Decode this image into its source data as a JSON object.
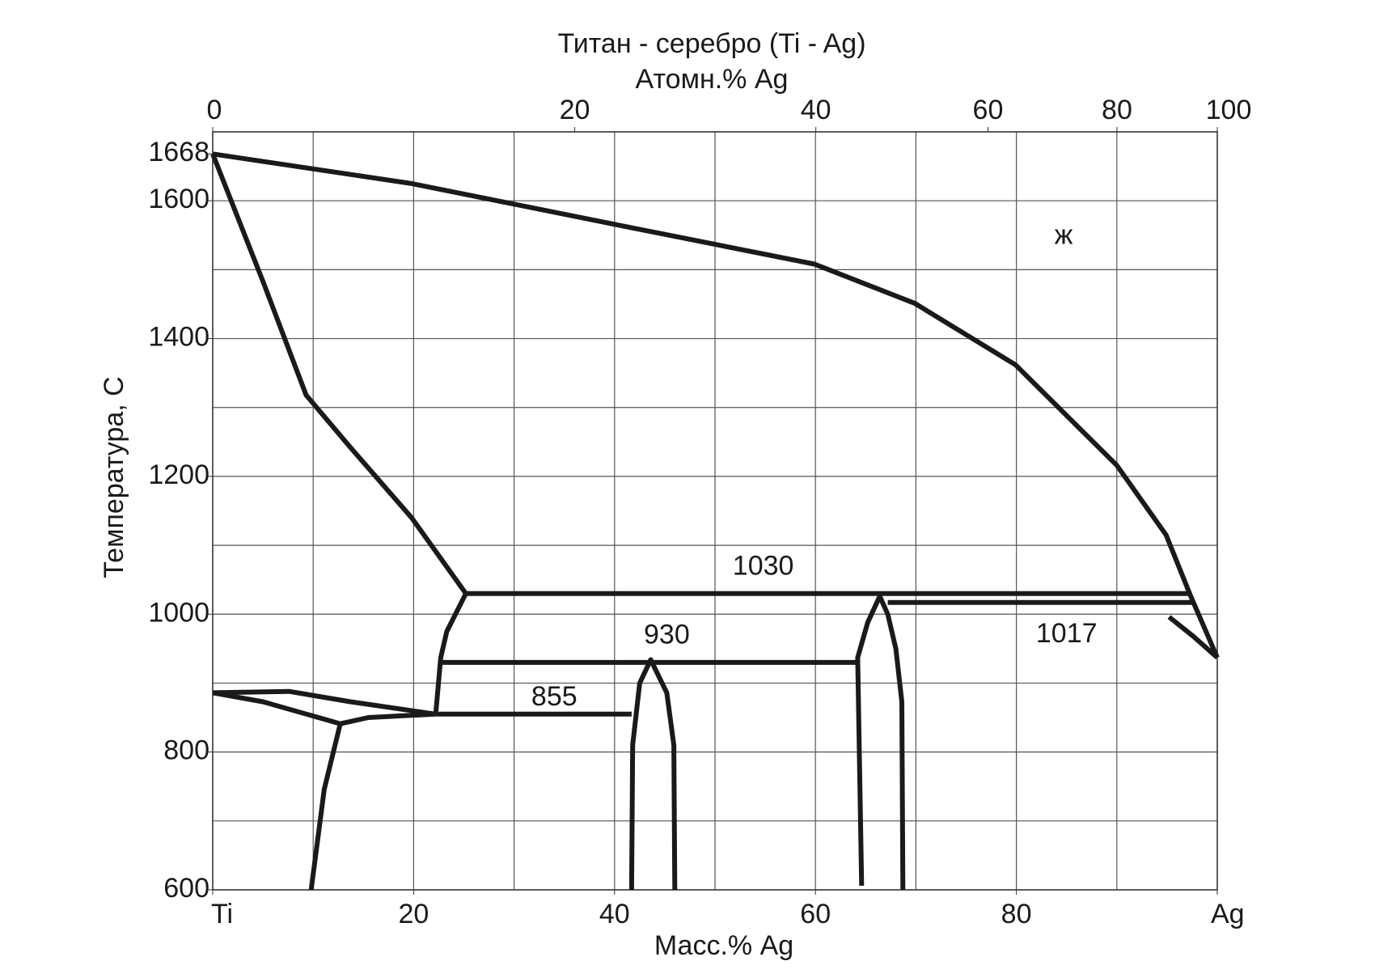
{
  "chart_data": {
    "type": "line",
    "title": "Титан - серебро (Ti - Ag)",
    "x2label": "Атомн.% Ag",
    "xlabel": "Масс.% Ag",
    "ylabel": "Температура, С",
    "xlim": [
      0,
      100
    ],
    "ylim": [
      600,
      1700
    ],
    "xticks": [
      {
        "value": 0,
        "label": "Ti"
      },
      20,
      40,
      60,
      80,
      {
        "value": 100,
        "label": "Ag"
      }
    ],
    "x2ticks": [
      0,
      20,
      40,
      60,
      80,
      100
    ],
    "yticks": [
      600,
      800,
      1000,
      1200,
      1400,
      1600,
      1668
    ],
    "xgrid": [
      0,
      10,
      20,
      30,
      40,
      50,
      60,
      70,
      80,
      90,
      100
    ],
    "ygrid": [
      600,
      700,
      800,
      900,
      1000,
      1100,
      1200,
      1300,
      1400,
      1500,
      1600,
      1700
    ],
    "color": "#1a1a1a",
    "curves": [
      {
        "x": [
          0,
          19.8,
          39.9,
          59.9,
          69.9,
          79.9,
          90,
          94.9,
          97.3,
          100
        ],
        "values": [
          1668,
          1625,
          1566,
          1508,
          1451,
          1362,
          1216,
          1115,
          1028,
          937
        ]
      },
      {
        "x": [
          0,
          5,
          9.3,
          13.7,
          19.8,
          25.2
        ],
        "values": [
          1668,
          1483,
          1318,
          1242,
          1140,
          1030
        ]
      },
      {
        "x": [
          25.2,
          97.3
        ],
        "values": [
          1030,
          1030
        ]
      },
      {
        "x": [
          25.2,
          23.3,
          22.7,
          22.2
        ],
        "values": [
          1030,
          975,
          937,
          855
        ]
      },
      {
        "x": [
          22.7,
          64.2
        ],
        "values": [
          930,
          930
        ]
      },
      {
        "x": [
          22.2,
          41.7
        ],
        "values": [
          855,
          855
        ]
      },
      {
        "x": [
          41.7,
          41.8,
          42.5,
          43.6,
          45.2,
          45.9,
          46.0
        ],
        "values": [
          600,
          810,
          900,
          934,
          886,
          810,
          600
        ]
      },
      {
        "x": [
          64.6,
          64.2,
          65.2,
          66.4,
          67.2,
          68.0,
          68.6,
          68.7
        ],
        "values": [
          606,
          937,
          988,
          1026,
          1000,
          950,
          873,
          600
        ]
      },
      {
        "x": [
          67.2,
          97.6
        ],
        "values": [
          1017,
          1017
        ]
      },
      {
        "x": [
          95.2,
          97.6,
          100
        ],
        "values": [
          996,
          968,
          937
        ]
      },
      {
        "x": [
          0,
          7.6,
          13.7,
          22.2
        ],
        "values": [
          886,
          888,
          873,
          855
        ]
      },
      {
        "x": [
          0,
          5,
          12.7,
          15.5,
          22.2
        ],
        "values": [
          886,
          873,
          841,
          850,
          855
        ]
      },
      {
        "x": [
          12.7,
          11.1,
          9.8
        ],
        "values": [
          841,
          746,
          600
        ]
      }
    ],
    "annotations": [
      {
        "text": "1030"
      },
      {
        "text": "930"
      },
      {
        "text": "855"
      },
      {
        "text": "1017"
      },
      {
        "text": "ж"
      }
    ]
  }
}
